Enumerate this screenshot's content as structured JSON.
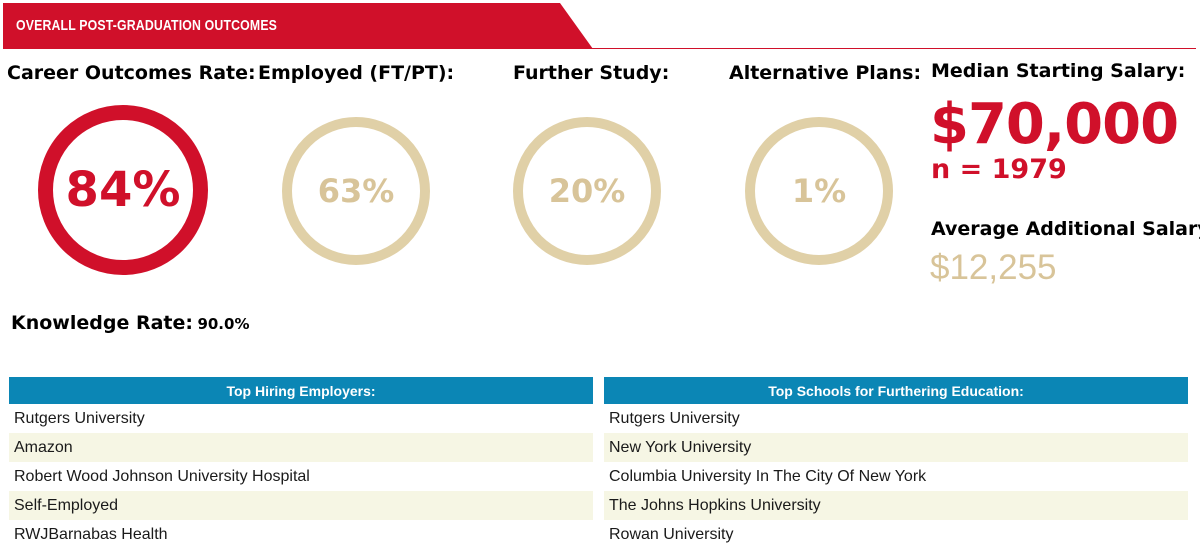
{
  "header": {
    "title": "OVERALL POST-GRADUATION OUTCOMES"
  },
  "colors": {
    "brand_red": "#d0102a",
    "tan": "#e0d0a7",
    "table_header_blue": "#0b86b5",
    "row_alt": "#f6f6e4"
  },
  "metrics": [
    {
      "label": "Career Outcomes Rate:",
      "value": "84%"
    },
    {
      "label": "Employed (FT/PT):",
      "value": "63%"
    },
    {
      "label": "Further Study:",
      "value": "20%"
    },
    {
      "label": "Alternative Plans:",
      "value": "1%"
    }
  ],
  "salary": {
    "median_label": "Median Starting Salary:",
    "median_value": "$70,000",
    "n": "n = 1979",
    "additional_label": "Average Additional Salary:",
    "additional_value": "$12,255"
  },
  "knowledge": {
    "label": "Knowledge Rate:",
    "value": "90.0%"
  },
  "employers": {
    "header": "Top Hiring Employers:",
    "rows": [
      "Rutgers University",
      "Amazon",
      "Robert Wood Johnson University Hospital",
      "Self-Employed",
      "RWJBarnabas Health"
    ]
  },
  "schools": {
    "header": "Top Schools for Furthering Education:",
    "rows": [
      "Rutgers University",
      "New York University",
      "Columbia University In The City Of New York",
      "The Johns Hopkins University",
      "Rowan University"
    ]
  }
}
